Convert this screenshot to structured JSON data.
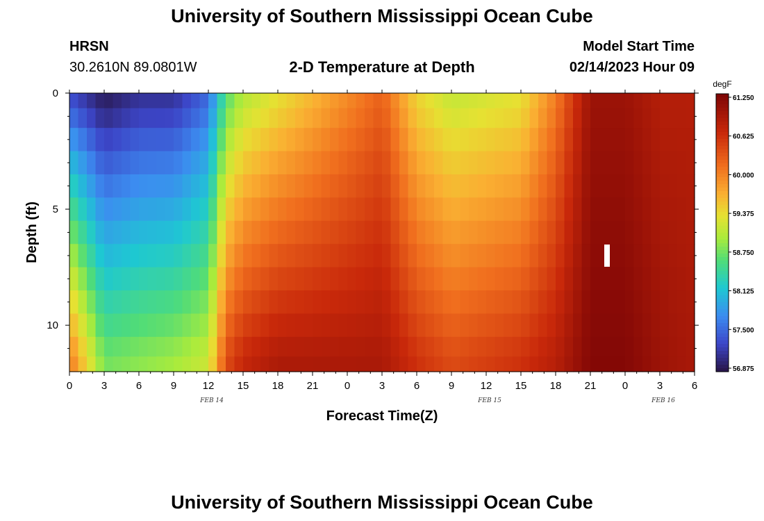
{
  "header": {
    "title": "University of Southern Mississippi Ocean Cube",
    "station": "HRSN",
    "coordinates": "30.2610N  89.0801W",
    "subtitle": "2-D Temperature at Depth",
    "model_label": "Model Start Time",
    "model_time": "02/14/2023 Hour 09"
  },
  "footer": {
    "title": "University of Southern Mississippi Ocean Cube"
  },
  "chart_data": {
    "type": "heatmap",
    "title": "2-D Temperature at Depth",
    "xlabel": "Forecast Time(Z)",
    "ylabel": "Depth (ft)",
    "xlim": [
      0,
      54
    ],
    "ylim": [
      12,
      0
    ],
    "x_ticks": [
      0,
      3,
      6,
      9,
      12,
      15,
      18,
      21,
      24,
      27,
      30,
      33,
      36,
      39,
      42,
      45,
      48,
      51,
      54
    ],
    "x_tick_labels": [
      "0",
      "3",
      "6",
      "9",
      "12",
      "15",
      "18",
      "21",
      "0",
      "3",
      "6",
      "9",
      "12",
      "15",
      "18",
      "21",
      "0",
      "3",
      "6"
    ],
    "y_ticks": [
      0,
      5,
      10
    ],
    "y_tick_labels": [
      "0",
      "5",
      "10"
    ],
    "date_labels": [
      {
        "x": 12,
        "label": "FEB 14"
      },
      {
        "x": 36,
        "label": "FEB 15"
      },
      {
        "x": 51,
        "label": "FEB 16"
      }
    ],
    "colorbar": {
      "unit": "degF",
      "min": 56.875,
      "max": 61.25,
      "tick_values": [
        61.25,
        60.625,
        60.0,
        59.375,
        58.75,
        58.125,
        57.5,
        56.875
      ],
      "tick_labels": [
        "61.250",
        "60.625",
        "60.000",
        "59.375",
        "58.750",
        "58.125",
        "57.500",
        "56.875"
      ]
    },
    "depth_levels_ft": [
      0.3,
      1,
      2,
      3,
      4,
      5,
      6,
      7,
      8,
      9,
      10,
      11,
      11.7
    ],
    "surface_temp_degF": [
      {
        "t": 0,
        "v": 57.3
      },
      {
        "t": 3,
        "v": 56.9
      },
      {
        "t": 6,
        "v": 57.1
      },
      {
        "t": 9,
        "v": 57.1
      },
      {
        "t": 12,
        "v": 57.5
      },
      {
        "t": 13.5,
        "v": 58.6
      },
      {
        "t": 15,
        "v": 59.0
      },
      {
        "t": 18,
        "v": 59.3
      },
      {
        "t": 21,
        "v": 59.6
      },
      {
        "t": 24,
        "v": 59.9
      },
      {
        "t": 27,
        "v": 60.2
      },
      {
        "t": 30,
        "v": 59.4
      },
      {
        "t": 33,
        "v": 59.1
      },
      {
        "t": 36,
        "v": 59.2
      },
      {
        "t": 39,
        "v": 59.3
      },
      {
        "t": 42,
        "v": 60.0
      },
      {
        "t": 45,
        "v": 61.0
      },
      {
        "t": 48,
        "v": 61.0
      },
      {
        "t": 51,
        "v": 60.8
      },
      {
        "t": 54,
        "v": 60.8
      }
    ],
    "bottom_temp_degF": [
      {
        "t": 0,
        "v": 60.1
      },
      {
        "t": 3,
        "v": 58.8
      },
      {
        "t": 6,
        "v": 58.9
      },
      {
        "t": 9,
        "v": 59.0
      },
      {
        "t": 12,
        "v": 59.2
      },
      {
        "t": 13.5,
        "v": 60.4
      },
      {
        "t": 15,
        "v": 60.7
      },
      {
        "t": 18,
        "v": 60.9
      },
      {
        "t": 21,
        "v": 60.9
      },
      {
        "t": 24,
        "v": 60.9
      },
      {
        "t": 27,
        "v": 60.9
      },
      {
        "t": 30,
        "v": 60.6
      },
      {
        "t": 33,
        "v": 60.4
      },
      {
        "t": 36,
        "v": 60.5
      },
      {
        "t": 39,
        "v": 60.6
      },
      {
        "t": 42,
        "v": 60.8
      },
      {
        "t": 45,
        "v": 61.2
      },
      {
        "t": 48,
        "v": 61.2
      },
      {
        "t": 51,
        "v": 61.0
      },
      {
        "t": 54,
        "v": 60.9
      }
    ]
  }
}
